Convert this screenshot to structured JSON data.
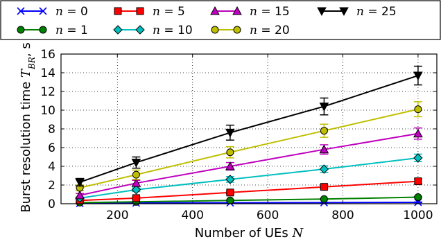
{
  "chart_data": {
    "type": "line",
    "title": "",
    "xlabel": "Number of UEs N",
    "ylabel": "Burst resolution time T_BR, s",
    "x": [
      100,
      250,
      500,
      750,
      1000
    ],
    "xlim": [
      50,
      1050
    ],
    "ylim": [
      0,
      16
    ],
    "xticks": [
      200,
      400,
      600,
      800,
      1000
    ],
    "yticks": [
      0,
      2,
      4,
      6,
      8,
      10,
      12,
      14,
      16
    ],
    "grid": true,
    "legend_position": "top",
    "series": [
      {
        "name": "n = 0",
        "color": "#0000ff",
        "marker": "x",
        "values": [
          0.04,
          0.08,
          0.1,
          0.12,
          0.15
        ],
        "errors": [
          0.02,
          0.02,
          0.03,
          0.03,
          0.04
        ]
      },
      {
        "name": "n = 1",
        "color": "#008000",
        "marker": "circle",
        "values": [
          0.12,
          0.2,
          0.35,
          0.5,
          0.7
        ],
        "errors": [
          0.03,
          0.04,
          0.05,
          0.06,
          0.08
        ]
      },
      {
        "name": "n = 5",
        "color": "#ff0000",
        "marker": "square",
        "values": [
          0.35,
          0.6,
          1.2,
          1.8,
          2.4
        ],
        "errors": [
          0.08,
          0.12,
          0.15,
          0.2,
          0.25
        ]
      },
      {
        "name": "n = 10",
        "color": "#00bfbf",
        "marker": "diamond",
        "values": [
          0.6,
          1.5,
          2.6,
          3.7,
          4.9
        ],
        "errors": [
          0.12,
          0.2,
          0.3,
          0.35,
          0.4
        ]
      },
      {
        "name": "n = 15",
        "color": "#bf00bf",
        "marker": "triangle-up",
        "values": [
          0.9,
          2.2,
          4.0,
          5.8,
          7.5
        ],
        "errors": [
          0.2,
          0.3,
          0.4,
          0.5,
          0.6
        ]
      },
      {
        "name": "n = 20",
        "color": "#bfbf00",
        "marker": "circle",
        "values": [
          1.7,
          3.1,
          5.5,
          7.8,
          10.1
        ],
        "errors": [
          0.3,
          0.5,
          0.6,
          0.7,
          0.8
        ]
      },
      {
        "name": "n = 25",
        "color": "#000000",
        "marker": "triangle-down",
        "values": [
          2.3,
          4.4,
          7.6,
          10.4,
          13.7
        ],
        "errors": [
          0.4,
          0.6,
          0.8,
          0.9,
          1.0
        ]
      }
    ],
    "legend_entries": [
      {
        "var": "n",
        "val": "= 0"
      },
      {
        "var": "n",
        "val": "= 5"
      },
      {
        "var": "n",
        "val": "= 15"
      },
      {
        "var": "n",
        "val": "= 25"
      },
      {
        "var": "n",
        "val": "= 1"
      },
      {
        "var": "n",
        "val": "= 10"
      },
      {
        "var": "n",
        "val": "= 20"
      }
    ],
    "ylabel_text": "Burst resolution time ",
    "ylabel_math": "T",
    "ylabel_sub": "BR",
    "ylabel_unit": ", s",
    "xlabel_text": "Number of UEs ",
    "xlabel_math": "N"
  }
}
